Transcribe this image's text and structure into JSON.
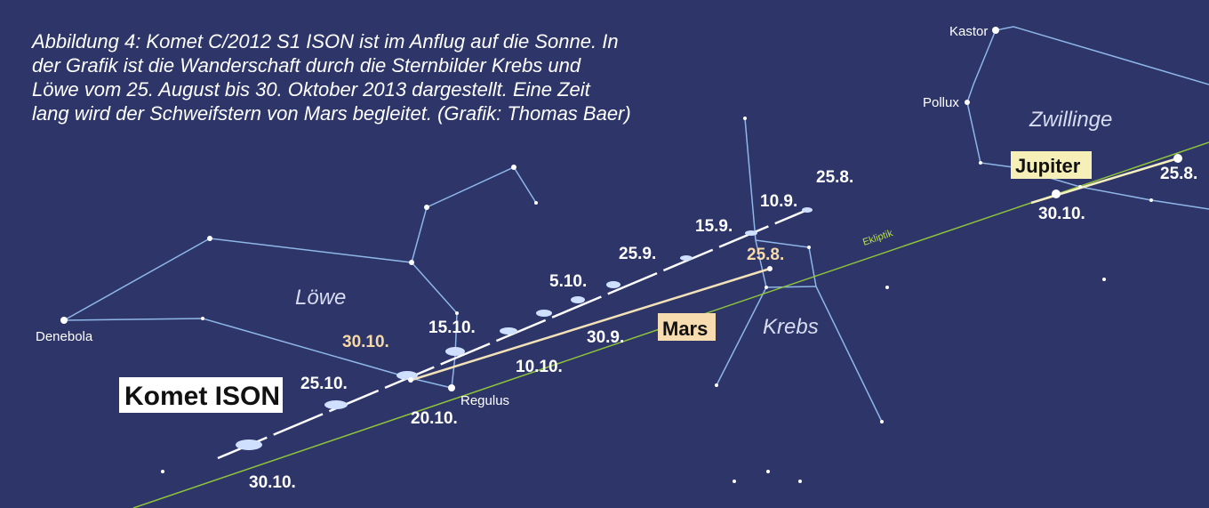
{
  "caption": [
    "Abbildung 4: Komet C/2012 S1 ISON ist im Anflug auf die Sonne. In",
    "der Grafik ist die Wanderschaft durch die Sternbilder Krebs und",
    "Löwe vom 25. August bis 30. Oktober 2013 dargestellt. Eine Zeit",
    "lang wird der Schweifstern von Mars begleitet. (Grafik: Thomas Baer)"
  ],
  "stars": {
    "kastor": "Kastor",
    "pollux": "Pollux",
    "denebola": "Denebola",
    "regulus": "Regulus"
  },
  "constellations": {
    "zwillinge": "Zwillinge",
    "loewe": "Löwe",
    "krebs": "Krebs"
  },
  "ecliptic": "Ekliptik",
  "objects": {
    "comet": "Komet ISON",
    "mars": "Mars",
    "jupiter": "Jupiter"
  },
  "comet_dates": [
    "25.8.",
    "10.9.",
    "15.9.",
    "25.9.",
    "30.9.",
    "5.10.",
    "10.10.",
    "15.10.",
    "20.10.",
    "25.10.",
    "30.10."
  ],
  "mars_dates": [
    "25.8.",
    "30.10."
  ],
  "jupiter_dates": [
    "25.8.",
    "30.10."
  ]
}
